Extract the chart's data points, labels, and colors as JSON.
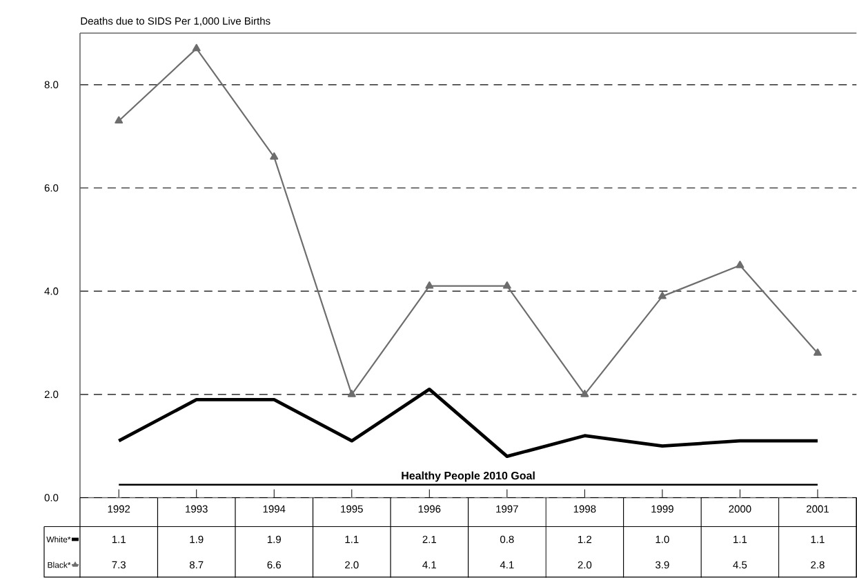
{
  "chart_data": {
    "type": "line",
    "ylabel": "Deaths due to SIDS Per 1,000 Live Births",
    "categories": [
      "1992",
      "1993",
      "1994",
      "1995",
      "1996",
      "1997",
      "1998",
      "1999",
      "2000",
      "2001"
    ],
    "series": [
      {
        "name": "White*",
        "color": "#000000",
        "marker": "none",
        "values": [
          1.1,
          1.9,
          1.9,
          1.1,
          2.1,
          0.8,
          1.2,
          1.0,
          1.1,
          1.1
        ],
        "value_labels": [
          "1.1",
          "1.9",
          "1.9",
          "1.1",
          "2.1",
          "0.8",
          "1.2",
          "1.0",
          "1.1",
          "1.1"
        ]
      },
      {
        "name": "Black*",
        "color": "#6d6d6d",
        "marker": "triangle",
        "values": [
          7.3,
          8.7,
          6.6,
          2.0,
          4.1,
          4.1,
          2.0,
          3.9,
          4.5,
          2.8
        ],
        "value_labels": [
          "7.3",
          "8.7",
          "6.6",
          "2.0",
          "4.1",
          "4.1",
          "2.0",
          "3.9",
          "4.5",
          "2.8"
        ]
      }
    ],
    "ylim": [
      0,
      9
    ],
    "yticks": [
      {
        "value": 0,
        "label": "0.0"
      },
      {
        "value": 2,
        "label": "2.0"
      },
      {
        "value": 4,
        "label": "4.0"
      },
      {
        "value": 6,
        "label": "6.0"
      },
      {
        "value": 8,
        "label": "8.0"
      }
    ],
    "grid": "y",
    "legend": "bottom left",
    "ref_lines": [
      {
        "axis": "y",
        "value": 0.25,
        "label": "Healthy People 2010 Goal",
        "color": "#000000",
        "line_style": "solid"
      }
    ]
  }
}
